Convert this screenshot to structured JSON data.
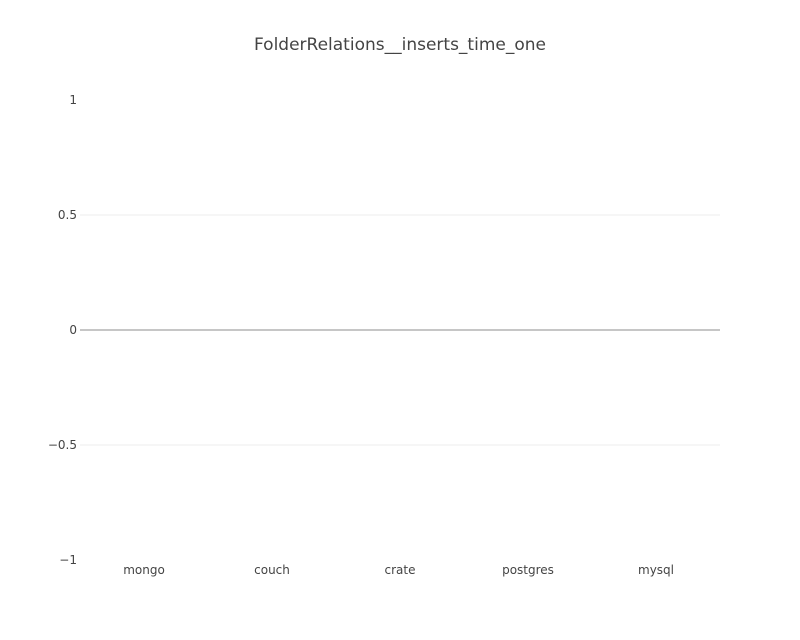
{
  "chart_data": {
    "type": "bar",
    "title": "FolderRelations__inserts_time_one",
    "categories": [
      "mongo",
      "couch",
      "crate",
      "postgres",
      "mysql"
    ],
    "values": [
      0,
      0,
      0,
      0,
      0
    ],
    "xlabel": "",
    "ylabel": "",
    "ylim": [
      -1,
      1
    ],
    "yticks": [
      1,
      0.5,
      0,
      -0.5,
      -1
    ],
    "ytick_labels": [
      "1",
      "0.5",
      "0",
      "−0.5",
      "−1"
    ],
    "grid": true,
    "legend": "none"
  },
  "colors": {
    "text": "#444444",
    "grid": "#eeeeee",
    "zeroline": "#444444",
    "background": "#ffffff"
  }
}
